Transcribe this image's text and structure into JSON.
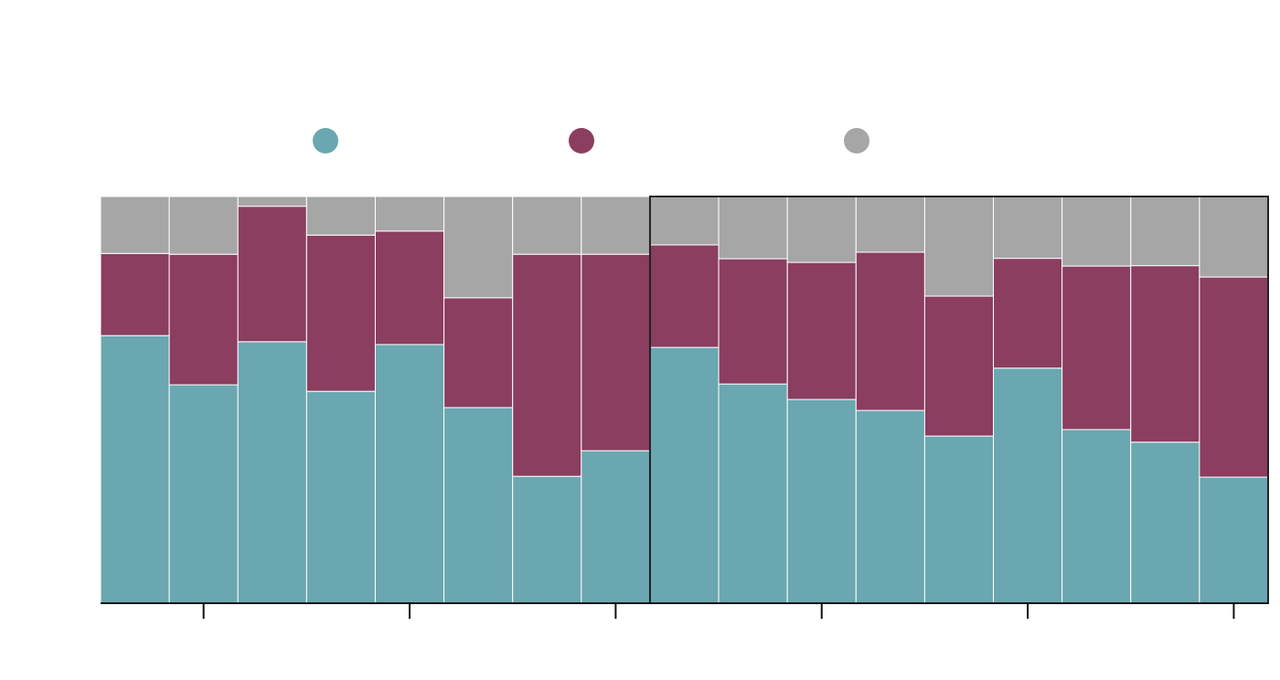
{
  "chart_data": {
    "type": "stacked-bar-100",
    "categories": [
      null,
      null,
      null,
      null,
      null,
      null,
      null,
      null,
      null,
      null,
      null,
      null,
      null,
      null,
      null,
      null,
      null
    ],
    "series": [
      {
        "color": "#6aa7b0",
        "values": [
          65.8,
          53.7,
          64.3,
          52.1,
          63.6,
          48.1,
          31.2,
          37.5,
          62.9,
          53.9,
          50.1,
          47.4,
          41.1,
          57.8,
          42.7,
          39.6,
          31.0
        ]
      },
      {
        "color": "#8b3e5f",
        "values": [
          20.2,
          32.1,
          33.3,
          38.4,
          27.9,
          27.0,
          54.6,
          48.3,
          25.2,
          30.8,
          33.7,
          38.9,
          34.4,
          27.0,
          40.2,
          43.4,
          49.2
        ]
      },
      {
        "color": "#a6a6a6",
        "values": [
          14.0,
          14.2,
          2.4,
          9.5,
          8.5,
          24.9,
          14.2,
          14.2,
          11.9,
          15.3,
          16.2,
          13.7,
          24.5,
          15.2,
          17.1,
          17.0,
          19.8
        ]
      }
    ],
    "ylim": [
      0,
      100
    ]
  }
}
